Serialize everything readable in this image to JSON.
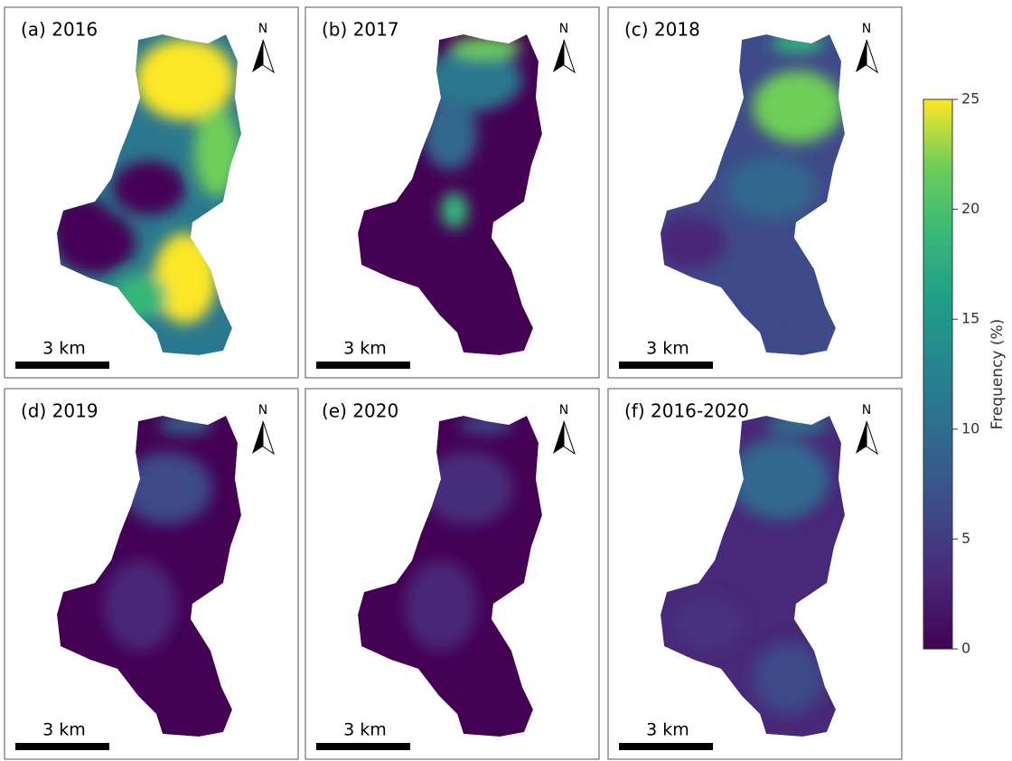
{
  "panels": [
    {
      "label": "(a) 2016",
      "scale_bar": "3 km",
      "north": "N"
    },
    {
      "label": "(b) 2017",
      "scale_bar": "3 km",
      "north": "N"
    },
    {
      "label": "(c) 2018",
      "scale_bar": "3 km",
      "north": "N"
    },
    {
      "label": "(d) 2019",
      "scale_bar": "3 km",
      "north": "N"
    },
    {
      "label": "(e) 2020",
      "scale_bar": "3 km",
      "north": "N"
    },
    {
      "label": "(f) 2016-2020",
      "scale_bar": "3 km",
      "north": "N"
    }
  ],
  "colorbar": {
    "label": "Frequency (%)",
    "lim": [
      0,
      25
    ],
    "ticks": [
      0,
      5,
      10,
      15,
      20,
      25
    ]
  }
}
